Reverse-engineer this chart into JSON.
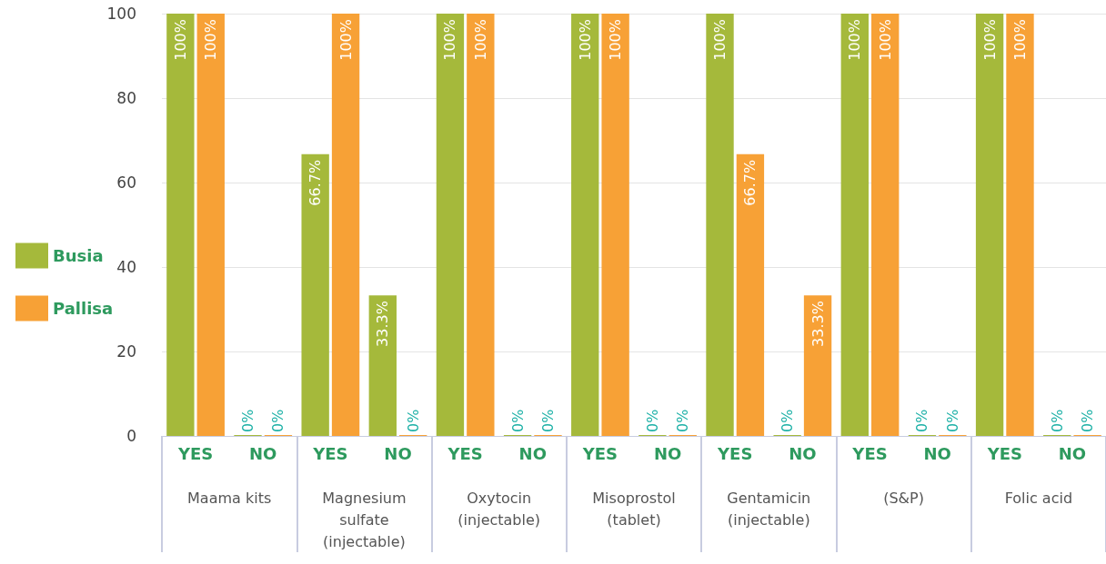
{
  "chart_data": {
    "type": "bar",
    "categories": [
      "YES",
      "NO",
      "YES",
      "NO",
      "YES",
      "NO",
      "YES",
      "NO",
      "YES",
      "NO",
      "YES",
      "NO",
      "YES",
      "NO"
    ],
    "series": [
      {
        "name": "Busia",
        "color": "#a5b93b",
        "values": [
          100,
          0,
          66.7,
          33.3,
          100,
          0,
          100,
          0,
          100,
          0,
          100,
          0,
          100,
          0
        ],
        "value_labels": [
          "100%",
          "0%",
          "66.7%",
          "33.3%",
          "100%",
          "0%",
          "100%",
          "0%",
          "100%",
          "0%",
          "100%",
          "0%",
          "100%",
          "0%"
        ]
      },
      {
        "name": "Pallisa",
        "color": "#f7a136",
        "values": [
          100,
          0,
          100,
          0,
          100,
          0,
          100,
          0,
          66.7,
          33.3,
          100,
          0,
          100,
          0
        ],
        "value_labels": [
          "100%",
          "0%",
          "100%",
          "0%",
          "100%",
          "0%",
          "100%",
          "0%",
          "66.7%",
          "33.3%",
          "100%",
          "0%",
          "100%",
          "0%"
        ]
      }
    ],
    "annotations": [
      "Maama kits",
      "Magnesium sulfate (injectable)",
      "Oxytocin (injectable)",
      "Misoprostol (tablet)",
      "Gentamicin (injectable)",
      "(S&P)",
      "Folic acid"
    ],
    "ylim": [
      0,
      100
    ],
    "yticks": [
      0,
      20,
      40,
      60,
      80,
      100
    ],
    "grid": "y",
    "legend": "left"
  }
}
